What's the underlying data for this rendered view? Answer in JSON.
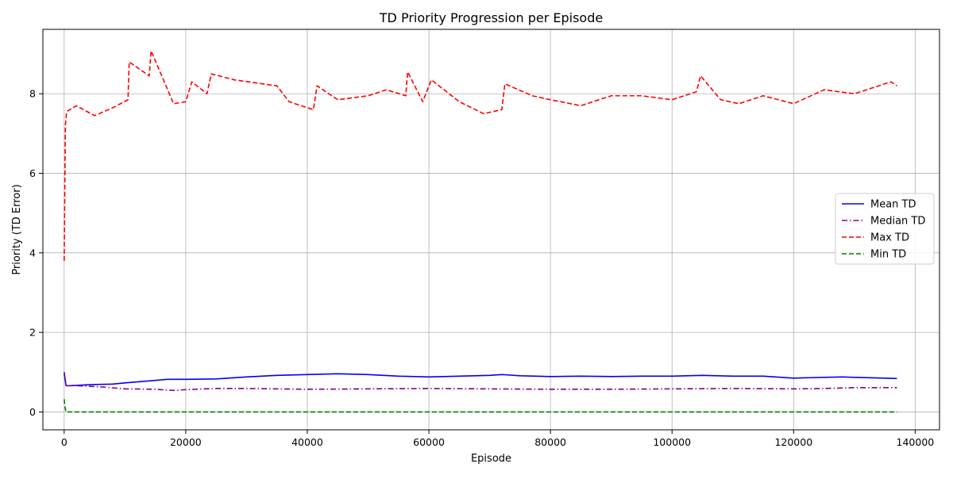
{
  "chart_data": {
    "type": "line",
    "title": "TD Priority Progression per Episode",
    "xlabel": "Episode",
    "ylabel": "Priority (TD Error)",
    "xlim": [
      -3500,
      144000
    ],
    "ylim": [
      -0.45,
      9.62
    ],
    "x_ticks": [
      0,
      20000,
      40000,
      60000,
      80000,
      100000,
      120000,
      140000
    ],
    "y_ticks": [
      0,
      2,
      4,
      6,
      8
    ],
    "grid": true,
    "legend_position": "center-right",
    "series": [
      {
        "name": "Mean TD",
        "color": "#0000ff",
        "dash": "solid",
        "x": [
          0,
          300,
          1000,
          5000,
          8000,
          10000,
          14000,
          17000,
          20000,
          25000,
          30000,
          35000,
          40000,
          45000,
          50000,
          55000,
          60000,
          65000,
          70000,
          72000,
          75000,
          80000,
          85000,
          90000,
          95000,
          100000,
          105000,
          110000,
          115000,
          120000,
          125000,
          128000,
          130000,
          135000,
          137000
        ],
        "y": [
          1.0,
          0.66,
          0.66,
          0.69,
          0.7,
          0.73,
          0.78,
          0.82,
          0.82,
          0.83,
          0.88,
          0.92,
          0.94,
          0.96,
          0.94,
          0.9,
          0.88,
          0.9,
          0.92,
          0.94,
          0.91,
          0.89,
          0.9,
          0.89,
          0.9,
          0.9,
          0.92,
          0.9,
          0.9,
          0.85,
          0.87,
          0.88,
          0.87,
          0.85,
          0.84
        ]
      },
      {
        "name": "Median TD",
        "color": "#800080",
        "dash": "dashdot",
        "x": [
          0,
          300,
          2000,
          6000,
          10000,
          15000,
          18000,
          20000,
          25000,
          30000,
          40000,
          50000,
          60000,
          70000,
          80000,
          90000,
          100000,
          110000,
          120000,
          125000,
          130000,
          137000
        ],
        "y": [
          0.95,
          0.66,
          0.66,
          0.63,
          0.58,
          0.57,
          0.54,
          0.56,
          0.59,
          0.59,
          0.57,
          0.58,
          0.59,
          0.58,
          0.57,
          0.57,
          0.58,
          0.59,
          0.58,
          0.59,
          0.61,
          0.61
        ]
      },
      {
        "name": "Max TD",
        "color": "#ff0000",
        "dash": "dashed",
        "x": [
          0,
          200,
          400,
          2000,
          5000,
          8000,
          10500,
          10700,
          14000,
          14300,
          18000,
          20000,
          21000,
          23500,
          24200,
          28000,
          35000,
          37000,
          41000,
          41600,
          45000,
          50000,
          53000,
          56200,
          56500,
          59000,
          60400,
          65000,
          69000,
          72000,
          72500,
          77000,
          80000,
          85000,
          90000,
          95000,
          100000,
          104000,
          104700,
          108000,
          111000,
          115000,
          120000,
          125000,
          130000,
          136000,
          137000
        ],
        "y": [
          3.8,
          7.2,
          7.55,
          7.7,
          7.45,
          7.65,
          7.85,
          8.8,
          8.45,
          9.08,
          7.75,
          7.8,
          8.3,
          8.0,
          8.5,
          8.35,
          8.2,
          7.8,
          7.6,
          8.2,
          7.85,
          7.95,
          8.1,
          7.95,
          8.55,
          7.8,
          8.35,
          7.8,
          7.5,
          7.6,
          8.25,
          7.95,
          7.85,
          7.7,
          7.95,
          7.95,
          7.85,
          8.05,
          8.45,
          7.85,
          7.75,
          7.95,
          7.75,
          8.1,
          8.0,
          8.3,
          8.2
        ]
      },
      {
        "name": "Min TD",
        "color": "#008000",
        "dash": "dashed",
        "x": [
          0,
          150,
          300,
          5000,
          137000
        ],
        "y": [
          0.32,
          0.12,
          0.0,
          0.0,
          0.0
        ]
      }
    ]
  }
}
